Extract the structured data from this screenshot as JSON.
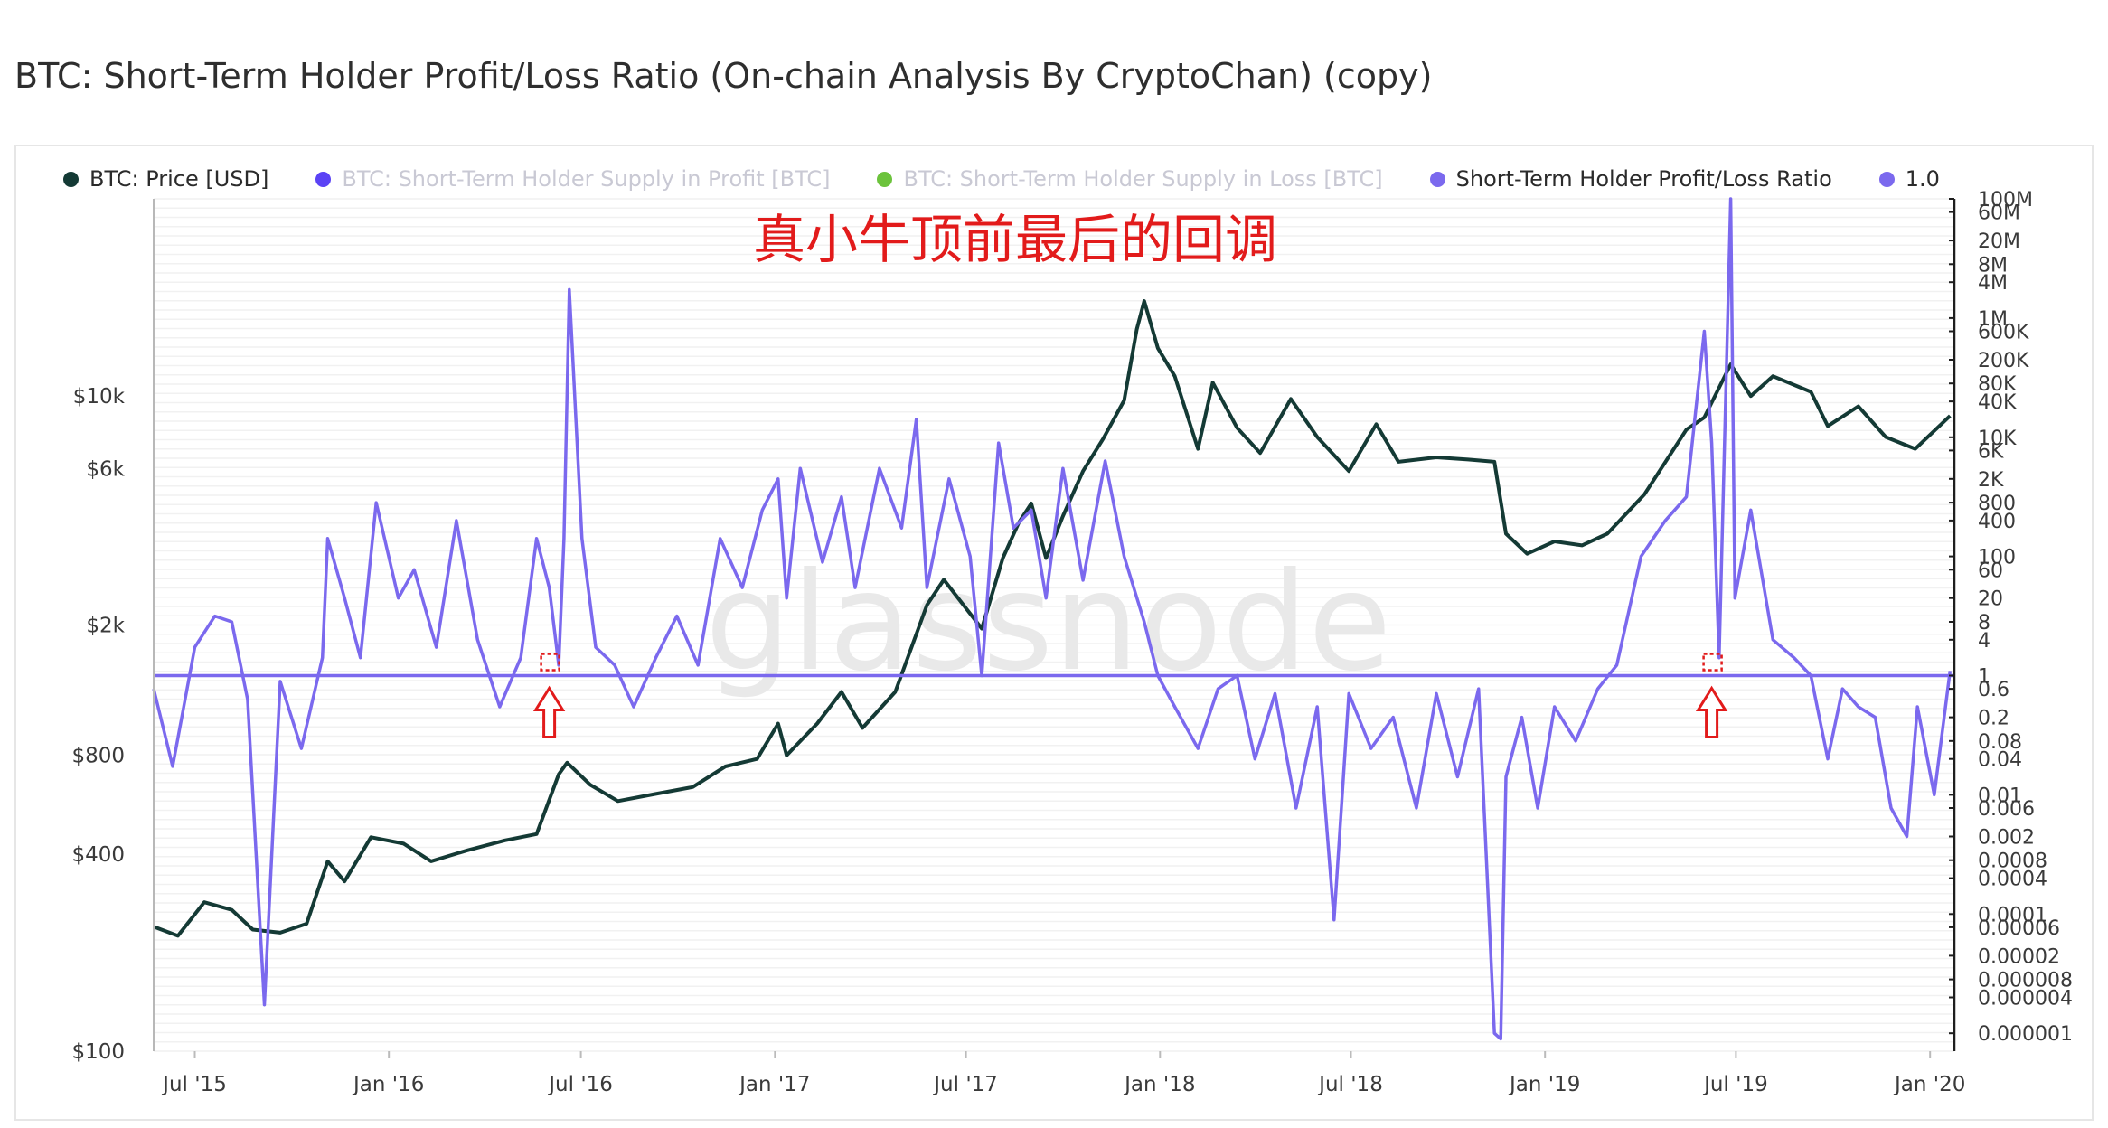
{
  "title": "BTC: Short-Term Holder Profit/Loss Ratio (On-chain Analysis By CryptoChan) (copy)",
  "watermark": "glassnode",
  "annotation": "真小牛顶前最后的回调",
  "colors": {
    "price": "#143a35",
    "ratio": "#7b69ee",
    "profit": "#5b43f5",
    "loss": "#6cc33c",
    "line": "#7b69ee",
    "annotation": "#e21b1b"
  },
  "legend": [
    {
      "label": "BTC: Price [USD]",
      "color": "#143a35",
      "muted": false
    },
    {
      "label": "BTC: Short-Term Holder Supply in Profit [BTC]",
      "color": "#5b43f5",
      "muted": true
    },
    {
      "label": "BTC: Short-Term Holder Supply in Loss [BTC]",
      "color": "#6cc33c",
      "muted": true
    },
    {
      "label": "Short-Term Holder Profit/Loss Ratio",
      "color": "#7b69ee",
      "muted": false
    },
    {
      "label": "1.0",
      "color": "#7b69ee",
      "muted": false
    }
  ],
  "chart_data": {
    "type": "line",
    "x_tick_labels": [
      "Jul '15",
      "Jan '16",
      "Jul '16",
      "Jan '17",
      "Jul '17",
      "Jan '18",
      "Jul '18",
      "Jan '19",
      "Jul '19",
      "Jan '20"
    ],
    "x_ticks": [
      "2015-07-01",
      "2016-01-01",
      "2016-07-01",
      "2017-01-01",
      "2017-07-01",
      "2018-01-01",
      "2018-07-01",
      "2019-01-01",
      "2019-07-01",
      "2020-01-01"
    ],
    "xlim": [
      "2015-05-23",
      "2020-01-24"
    ],
    "left_axis": {
      "scale": "log",
      "ylim": [
        100,
        40000
      ],
      "tick_labels": [
        "$10k",
        "$6k",
        "$2k",
        "$800",
        "$400",
        "$100"
      ],
      "tick_values": [
        10000,
        6000,
        2000,
        800,
        400,
        100
      ]
    },
    "right_axis": {
      "scale": "log",
      "ylim": [
        5e-07,
        100000000
      ],
      "tick_labels": [
        "100M",
        "60M",
        "20M",
        "8M",
        "4M",
        "1M",
        "600K",
        "200K",
        "80K",
        "40K",
        "10K",
        "6K",
        "2K",
        "800",
        "400",
        "100",
        "60",
        "20",
        "8",
        "4",
        "1",
        "0.6",
        "0.2",
        "0.08",
        "0.04",
        "0.01",
        "0.006",
        "0.002",
        "0.0008",
        "0.0004",
        "0.0001",
        "0.00006",
        "0.00002",
        "0.000008",
        "0.000004",
        "0.000001"
      ],
      "tick_values": [
        100000000,
        60000000,
        20000000,
        8000000,
        4000000,
        1000000,
        600000,
        200000,
        80000,
        40000,
        10000,
        6000,
        2000,
        800,
        400,
        100,
        60,
        20,
        8,
        4,
        1,
        0.6,
        0.2,
        0.08,
        0.04,
        0.01,
        0.006,
        0.002,
        0.0008,
        0.0004,
        0.0001,
        6e-05,
        2e-05,
        8e-06,
        4e-06,
        1e-06
      ]
    },
    "reference_line": {
      "name": "1.0",
      "value": 1.0
    },
    "grid": true,
    "legend_position": "top-left",
    "series": [
      {
        "name": "BTC: Price [USD]",
        "axis": "left",
        "x": [
          "2015-05-23",
          "2015-06-15",
          "2015-07-10",
          "2015-08-05",
          "2015-08-25",
          "2015-09-20",
          "2015-10-15",
          "2015-11-04",
          "2015-11-20",
          "2015-12-15",
          "2016-01-15",
          "2016-02-10",
          "2016-03-15",
          "2016-04-20",
          "2016-05-20",
          "2016-06-10",
          "2016-06-18",
          "2016-07-10",
          "2016-08-05",
          "2016-09-10",
          "2016-10-15",
          "2016-11-15",
          "2016-12-15",
          "2017-01-04",
          "2017-01-12",
          "2017-02-10",
          "2017-03-05",
          "2017-03-25",
          "2017-04-25",
          "2017-05-25",
          "2017-06-10",
          "2017-07-16",
          "2017-08-05",
          "2017-08-20",
          "2017-09-01",
          "2017-09-15",
          "2017-10-01",
          "2017-10-20",
          "2017-11-08",
          "2017-11-28",
          "2017-12-10",
          "2017-12-17",
          "2017-12-30",
          "2018-01-15",
          "2018-02-06",
          "2018-02-20",
          "2018-03-15",
          "2018-04-06",
          "2018-05-05",
          "2018-05-30",
          "2018-06-29",
          "2018-07-25",
          "2018-08-15",
          "2018-09-20",
          "2018-10-20",
          "2018-11-14",
          "2018-11-25",
          "2018-12-15",
          "2019-01-10",
          "2019-02-05",
          "2019-03-01",
          "2019-04-05",
          "2019-05-15",
          "2019-06-01",
          "2019-06-26",
          "2019-07-15",
          "2019-08-05",
          "2019-09-10",
          "2019-09-26",
          "2019-10-25",
          "2019-11-20",
          "2019-12-18",
          "2020-01-20"
        ],
        "values": [
          240,
          225,
          285,
          270,
          235,
          230,
          245,
          380,
          330,
          450,
          430,
          380,
          410,
          440,
          460,
          700,
          760,
          650,
          580,
          610,
          640,
          740,
          780,
          1000,
          800,
          1000,
          1250,
          970,
          1250,
          2300,
          2750,
          1950,
          3200,
          4100,
          4700,
          3200,
          4300,
          5900,
          7400,
          9700,
          16000,
          19500,
          14000,
          11500,
          6900,
          11000,
          8000,
          6700,
          9800,
          7500,
          5900,
          8200,
          6300,
          6500,
          6400,
          6300,
          3800,
          3300,
          3600,
          3500,
          3800,
          5000,
          7900,
          8600,
          12500,
          10000,
          11500,
          10300,
          8100,
          9300,
          7500,
          6900,
          8700
        ]
      },
      {
        "name": "Short-Term Holder Profit/Loss Ratio",
        "axis": "right",
        "x": [
          "2015-05-23",
          "2015-06-10",
          "2015-07-01",
          "2015-07-20",
          "2015-08-05",
          "2015-08-20",
          "2015-09-05",
          "2015-09-20",
          "2015-10-10",
          "2015-10-30",
          "2015-11-04",
          "2015-11-20",
          "2015-12-05",
          "2015-12-20",
          "2016-01-10",
          "2016-01-25",
          "2016-02-15",
          "2016-03-05",
          "2016-03-25",
          "2016-04-15",
          "2016-05-05",
          "2016-05-20",
          "2016-06-01",
          "2016-06-10",
          "2016-06-15",
          "2016-06-20",
          "2016-07-02",
          "2016-07-15",
          "2016-08-02",
          "2016-08-20",
          "2016-09-10",
          "2016-09-30",
          "2016-10-20",
          "2016-11-10",
          "2016-12-01",
          "2016-12-20",
          "2017-01-04",
          "2017-01-12",
          "2017-01-25",
          "2017-02-15",
          "2017-03-05",
          "2017-03-18",
          "2017-04-10",
          "2017-05-01",
          "2017-05-15",
          "2017-05-25",
          "2017-06-15",
          "2017-07-05",
          "2017-07-16",
          "2017-08-01",
          "2017-08-15",
          "2017-09-01",
          "2017-09-15",
          "2017-10-01",
          "2017-10-20",
          "2017-11-10",
          "2017-11-28",
          "2017-12-17",
          "2017-12-30",
          "2018-01-15",
          "2018-02-06",
          "2018-02-25",
          "2018-03-15",
          "2018-04-01",
          "2018-04-20",
          "2018-05-10",
          "2018-05-30",
          "2018-06-15",
          "2018-06-29",
          "2018-07-20",
          "2018-08-10",
          "2018-09-01",
          "2018-09-20",
          "2018-10-10",
          "2018-10-30",
          "2018-11-14",
          "2018-11-20",
          "2018-11-25",
          "2018-12-10",
          "2018-12-25",
          "2019-01-10",
          "2019-01-30",
          "2019-02-20",
          "2019-03-10",
          "2019-04-02",
          "2019-04-25",
          "2019-05-15",
          "2019-06-01",
          "2019-06-08",
          "2019-06-15",
          "2019-06-26",
          "2019-06-30",
          "2019-07-15",
          "2019-08-05",
          "2019-08-25",
          "2019-09-10",
          "2019-09-26",
          "2019-10-10",
          "2019-10-25",
          "2019-11-10",
          "2019-11-25",
          "2019-12-10",
          "2019-12-20",
          "2020-01-05",
          "2020-01-20"
        ],
        "values": [
          0.6,
          0.03,
          3,
          10,
          8,
          0.4,
          3e-06,
          0.8,
          0.06,
          2,
          200,
          20,
          2,
          800,
          20,
          60,
          3,
          400,
          4,
          0.3,
          2,
          200,
          30,
          1.5,
          200,
          3000000,
          200,
          3,
          1.5,
          0.3,
          2,
          10,
          1.5,
          200,
          30,
          600,
          2000,
          20,
          3000,
          80,
          1000,
          30,
          3000,
          300,
          20000,
          30,
          2000,
          100,
          1,
          8000,
          300,
          600,
          20,
          3000,
          40,
          4000,
          100,
          8,
          1,
          0.3,
          0.06,
          0.6,
          1,
          0.04,
          0.5,
          0.006,
          0.3,
          8e-05,
          0.5,
          0.06,
          0.2,
          0.006,
          0.5,
          0.02,
          0.6,
          1e-06,
          8e-07,
          0.02,
          0.2,
          0.006,
          0.3,
          0.08,
          0.6,
          1.5,
          100,
          400,
          1000,
          600000,
          8000,
          2,
          100000000,
          20,
          600,
          4,
          2,
          1,
          0.04,
          0.6,
          0.3,
          0.2,
          0.006,
          0.002,
          0.3,
          0.01,
          1.2
        ]
      }
    ],
    "markers": [
      {
        "shape": "up-arrow",
        "x": "2016-06-01"
      },
      {
        "shape": "up-arrow",
        "x": "2019-06-08"
      }
    ]
  }
}
